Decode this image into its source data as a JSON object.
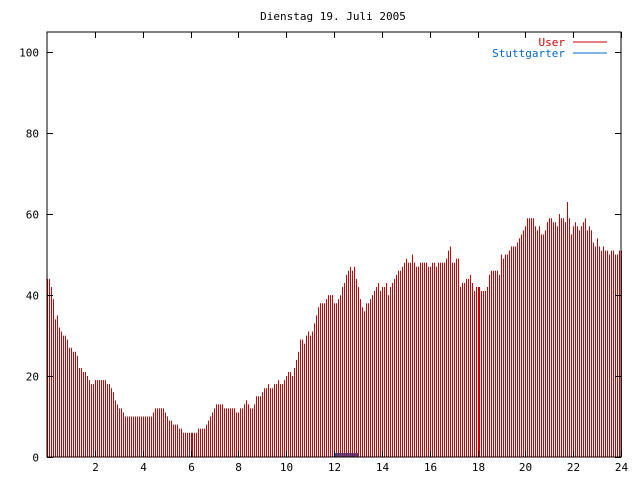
{
  "chart_data": {
    "type": "bar",
    "title": "Dienstag 19. Juli 2005",
    "xlabel": "",
    "ylabel": "",
    "xlim": [
      0,
      24
    ],
    "ylim": [
      0,
      105
    ],
    "x_ticks": [
      2,
      4,
      6,
      8,
      10,
      12,
      14,
      16,
      18,
      20,
      22,
      24
    ],
    "x_tick_labels": [
      "2",
      "4",
      "6",
      "8",
      "10",
      "12",
      "14",
      "16",
      "18",
      "20",
      "22",
      "24"
    ],
    "y_ticks": [
      0,
      20,
      40,
      60,
      80,
      100
    ],
    "y_tick_labels": [
      "0",
      "20",
      "40",
      "60",
      "80",
      "100"
    ],
    "grid": false,
    "legend_position": "top-right",
    "series": [
      {
        "name": "User",
        "color": "#cc0000",
        "sample_interval_hours": 0.0833,
        "values": [
          44,
          44,
          42,
          39,
          34,
          35,
          32,
          31,
          30,
          30,
          29,
          27,
          27,
          26,
          26,
          25,
          22,
          22,
          21,
          21,
          20,
          19,
          18,
          18,
          19,
          19,
          19,
          19,
          19,
          19,
          18,
          18,
          17,
          16,
          14,
          13,
          12,
          12,
          11,
          10,
          10,
          10,
          10,
          10,
          10,
          10,
          10,
          10,
          10,
          10,
          10,
          10,
          10,
          11,
          12,
          12,
          12,
          12,
          12,
          11,
          10,
          9,
          9,
          8,
          8,
          8,
          7,
          7,
          6,
          6,
          6,
          6,
          6,
          6,
          6,
          6,
          7,
          7,
          7,
          7,
          8,
          9,
          10,
          11,
          12,
          13,
          13,
          13,
          13,
          12,
          12,
          12,
          12,
          12,
          12,
          11,
          11,
          12,
          12,
          13,
          14,
          13,
          12,
          12,
          13,
          15,
          15,
          15,
          16,
          17,
          17,
          18,
          17,
          17,
          18,
          18,
          19,
          18,
          18,
          19,
          20,
          21,
          21,
          20,
          22,
          24,
          26,
          29,
          29,
          28,
          30,
          31,
          30,
          31,
          33,
          35,
          37,
          38,
          38,
          38,
          39,
          40,
          40,
          40,
          38,
          38,
          39,
          40,
          42,
          43,
          45,
          46,
          47,
          46,
          47,
          44,
          42,
          39,
          37,
          36,
          38,
          38,
          39,
          40,
          41,
          42,
          43,
          41,
          42,
          42,
          43,
          40,
          42,
          43,
          44,
          45,
          46,
          46,
          47,
          48,
          49,
          48,
          48,
          50,
          48,
          47,
          47,
          48,
          48,
          48,
          48,
          47,
          47,
          48,
          48,
          47,
          48,
          48,
          48,
          48,
          49,
          51,
          52,
          48,
          48,
          49,
          49,
          42,
          43,
          43,
          44,
          44,
          45,
          43,
          41,
          42,
          42,
          42,
          41,
          41,
          41,
          42,
          45,
          46,
          46,
          46,
          46,
          45,
          50,
          49,
          50,
          50,
          51,
          52,
          52,
          52,
          53,
          54,
          55,
          56,
          57,
          59,
          59,
          59,
          59,
          57,
          56,
          57,
          55,
          55,
          56,
          58,
          59,
          59,
          58,
          58,
          57,
          60,
          59,
          59,
          58,
          63,
          59,
          55,
          57,
          58,
          57,
          56,
          57,
          58,
          59,
          56,
          57,
          56,
          53,
          52,
          54,
          52,
          51,
          52,
          51,
          51,
          50,
          51,
          51,
          50,
          50,
          51,
          51
        ]
      },
      {
        "name": "Stuttgarter",
        "color": "#0066cc",
        "values": [
          0,
          0,
          0,
          0,
          0,
          0,
          0,
          0,
          0,
          0,
          0,
          0,
          0,
          0,
          0,
          0,
          0,
          0,
          0,
          0,
          0,
          0,
          0,
          0,
          0,
          0,
          0,
          0,
          0,
          0,
          0,
          0,
          0,
          0,
          0,
          0,
          0,
          0,
          0,
          0,
          0,
          0,
          0,
          0,
          0,
          0,
          0,
          0,
          0,
          0,
          0,
          0,
          0,
          0,
          0,
          0,
          0,
          0,
          0,
          0,
          0,
          0,
          0,
          0,
          0,
          0,
          0,
          0,
          0,
          0,
          0,
          0,
          0,
          0,
          0,
          0,
          0,
          0,
          0,
          0,
          0,
          0,
          0,
          0,
          0,
          0,
          0,
          0,
          0,
          0,
          0,
          0,
          0,
          0,
          0,
          0,
          0,
          0,
          0,
          0,
          0,
          0,
          0,
          0,
          0,
          0,
          0,
          0,
          0,
          0,
          0,
          0,
          0,
          0,
          0,
          0,
          0,
          0,
          0,
          0,
          0,
          0,
          0,
          0,
          0,
          0,
          0,
          0,
          0,
          0,
          0,
          0,
          0,
          0,
          0,
          0,
          0,
          0,
          0,
          0,
          0,
          0,
          0,
          0,
          1,
          1,
          1,
          1,
          1,
          1,
          1,
          1,
          1,
          1,
          1,
          1,
          0,
          0,
          0,
          0,
          0,
          0,
          0,
          0,
          0,
          0,
          0,
          0,
          0,
          0,
          0,
          0,
          0,
          0,
          0,
          0,
          0,
          0,
          0,
          0,
          0,
          0,
          0,
          0,
          0,
          0,
          0,
          0,
          0,
          0,
          0,
          0,
          0,
          0,
          0,
          0,
          0,
          0,
          0,
          0,
          0,
          0,
          0,
          0,
          0,
          0,
          0,
          0,
          0,
          0,
          0,
          0,
          0,
          0,
          0,
          0,
          0,
          0,
          0,
          0,
          0,
          0,
          0,
          0,
          0,
          0,
          0,
          0,
          0,
          0,
          0,
          0,
          0,
          0,
          0,
          0,
          0,
          0,
          0,
          0,
          0,
          0,
          0,
          0,
          0,
          0,
          0,
          0,
          0,
          0,
          0,
          0,
          0,
          0,
          0,
          0,
          0,
          0,
          0,
          0,
          0,
          0,
          0,
          0,
          0,
          0,
          0,
          0,
          0,
          0,
          0,
          0,
          0,
          0,
          0,
          0,
          0,
          0,
          0,
          0,
          0,
          0,
          0,
          0,
          0,
          0,
          0,
          0
        ]
      }
    ]
  }
}
